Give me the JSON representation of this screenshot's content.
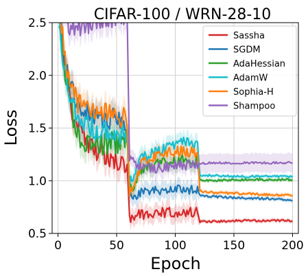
{
  "chart_data": {
    "type": "line",
    "title": "CIFAR-100 / WRN-28-10",
    "xlabel": "Epoch",
    "ylabel": "Loss",
    "xlim": [
      -5,
      205
    ],
    "ylim": [
      0.5,
      2.5
    ],
    "xticks": [
      0,
      50,
      100,
      150,
      200
    ],
    "yticks": [
      0.5,
      1.0,
      1.5,
      2.0,
      2.5
    ],
    "xtick_labels": [
      "0",
      "50",
      "100",
      "150",
      "200"
    ],
    "ytick_labels": [
      "0.5",
      "1.0",
      "1.5",
      "2.0",
      "2.5"
    ],
    "grid": true,
    "legend_position": "top-right",
    "series": [
      {
        "name": "Sassha",
        "color": "#d62728",
        "points": [
          [
            1,
            2.7
          ],
          [
            5,
            2.15
          ],
          [
            10,
            1.78
          ],
          [
            15,
            1.55
          ],
          [
            20,
            1.43
          ],
          [
            30,
            1.32
          ],
          [
            40,
            1.26
          ],
          [
            50,
            1.21
          ],
          [
            55,
            1.17
          ],
          [
            59,
            1.16
          ],
          [
            61,
            0.66
          ],
          [
            63,
            0.65
          ],
          [
            70,
            0.68
          ],
          [
            80,
            0.69
          ],
          [
            90,
            0.7
          ],
          [
            100,
            0.7
          ],
          [
            110,
            0.7
          ],
          [
            119,
            0.7
          ],
          [
            121,
            0.61
          ],
          [
            125,
            0.61
          ],
          [
            150,
            0.62
          ],
          [
            200,
            0.62
          ]
        ]
      },
      {
        "name": "SGDM",
        "color": "#1f77b4",
        "points": [
          [
            1,
            2.6
          ],
          [
            5,
            2.2
          ],
          [
            10,
            1.95
          ],
          [
            15,
            1.8
          ],
          [
            20,
            1.68
          ],
          [
            30,
            1.62
          ],
          [
            40,
            1.6
          ],
          [
            50,
            1.57
          ],
          [
            55,
            1.56
          ],
          [
            59,
            1.55
          ],
          [
            61,
            0.84
          ],
          [
            65,
            0.85
          ],
          [
            70,
            0.88
          ],
          [
            80,
            0.9
          ],
          [
            90,
            0.91
          ],
          [
            100,
            0.92
          ],
          [
            110,
            0.92
          ],
          [
            119,
            0.91
          ],
          [
            121,
            0.86
          ],
          [
            130,
            0.85
          ],
          [
            150,
            0.84
          ],
          [
            175,
            0.83
          ],
          [
            200,
            0.82
          ]
        ]
      },
      {
        "name": "AdaHessian",
        "color": "#2ca02c",
        "points": [
          [
            1,
            2.5
          ],
          [
            5,
            2.1
          ],
          [
            10,
            1.75
          ],
          [
            15,
            1.52
          ],
          [
            20,
            1.4
          ],
          [
            30,
            1.36
          ],
          [
            40,
            1.35
          ],
          [
            50,
            1.36
          ],
          [
            55,
            1.37
          ],
          [
            59,
            1.37
          ],
          [
            61,
            0.92
          ],
          [
            65,
            0.95
          ],
          [
            70,
            1.1
          ],
          [
            80,
            1.15
          ],
          [
            90,
            1.18
          ],
          [
            100,
            1.2
          ],
          [
            110,
            1.2
          ],
          [
            119,
            1.19
          ],
          [
            121,
            1.0
          ],
          [
            130,
            1.0
          ],
          [
            150,
            1.01
          ],
          [
            200,
            1.01
          ]
        ]
      },
      {
        "name": "AdamW",
        "color": "#17becf",
        "points": [
          [
            1,
            2.5
          ],
          [
            5,
            2.05
          ],
          [
            10,
            1.8
          ],
          [
            15,
            1.62
          ],
          [
            20,
            1.55
          ],
          [
            30,
            1.5
          ],
          [
            40,
            1.48
          ],
          [
            50,
            1.46
          ],
          [
            55,
            1.45
          ],
          [
            59,
            1.45
          ],
          [
            61,
            1.0
          ],
          [
            65,
            1.05
          ],
          [
            70,
            1.2
          ],
          [
            80,
            1.26
          ],
          [
            90,
            1.3
          ],
          [
            100,
            1.35
          ],
          [
            110,
            1.37
          ],
          [
            119,
            1.35
          ],
          [
            121,
            1.05
          ],
          [
            130,
            1.05
          ],
          [
            150,
            1.04
          ],
          [
            175,
            1.04
          ],
          [
            200,
            1.04
          ]
        ]
      },
      {
        "name": "Sophia-H",
        "color": "#ff7f0e",
        "points": [
          [
            1,
            2.7
          ],
          [
            5,
            2.25
          ],
          [
            10,
            1.95
          ],
          [
            15,
            1.78
          ],
          [
            20,
            1.7
          ],
          [
            30,
            1.68
          ],
          [
            40,
            1.66
          ],
          [
            50,
            1.62
          ],
          [
            55,
            1.6
          ],
          [
            59,
            1.58
          ],
          [
            61,
            0.9
          ],
          [
            65,
            0.92
          ],
          [
            70,
            1.15
          ],
          [
            80,
            1.22
          ],
          [
            90,
            1.26
          ],
          [
            100,
            1.28
          ],
          [
            110,
            1.28
          ],
          [
            119,
            1.27
          ],
          [
            121,
            0.9
          ],
          [
            130,
            0.89
          ],
          [
            150,
            0.88
          ],
          [
            175,
            0.87
          ],
          [
            200,
            0.86
          ]
        ]
      },
      {
        "name": "Shampoo",
        "color": "#9467bd",
        "points": [
          [
            1,
            2.9
          ],
          [
            5,
            2.6
          ],
          [
            10,
            2.45
          ],
          [
            15,
            2.45
          ],
          [
            20,
            2.48
          ],
          [
            30,
            2.5
          ],
          [
            40,
            2.52
          ],
          [
            50,
            2.55
          ],
          [
            55,
            2.55
          ],
          [
            59,
            2.55
          ],
          [
            61,
            1.22
          ],
          [
            65,
            1.18
          ],
          [
            70,
            1.13
          ],
          [
            80,
            1.12
          ],
          [
            90,
            1.13
          ],
          [
            100,
            1.14
          ],
          [
            110,
            1.15
          ],
          [
            120,
            1.16
          ],
          [
            130,
            1.17
          ],
          [
            150,
            1.17
          ],
          [
            175,
            1.17
          ],
          [
            200,
            1.17
          ]
        ]
      }
    ]
  }
}
